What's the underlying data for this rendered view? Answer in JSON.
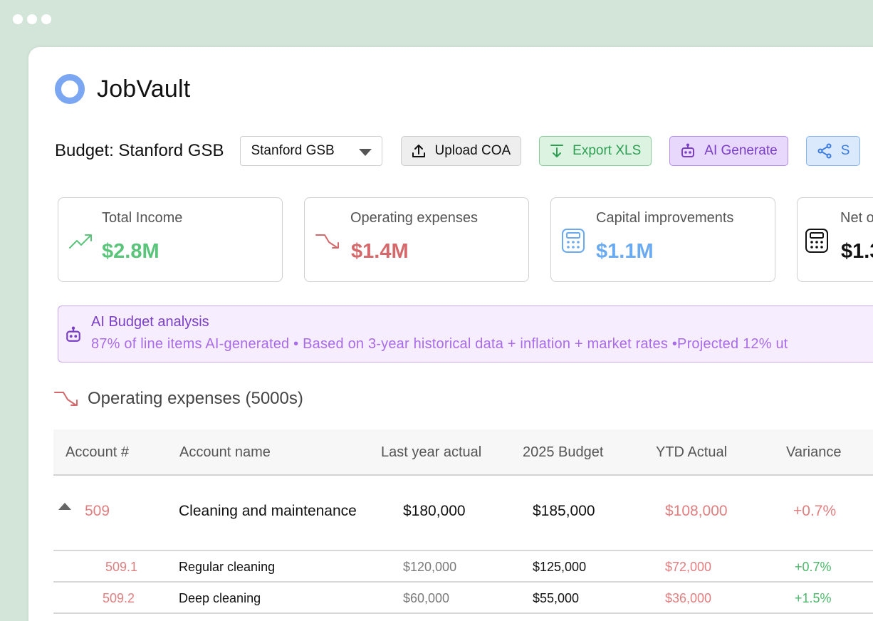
{
  "app": {
    "name": "JobVault"
  },
  "toolbar": {
    "budget_title": "Budget: Stanford GSB",
    "select_value": "Stanford GSB",
    "upload_label": "Upload COA",
    "export_label": "Export XLS",
    "ai_label": "AI Generate",
    "share_label": "S"
  },
  "cards": [
    {
      "label": "Total Income",
      "value": "$2.8M",
      "icon": "trend-up-icon",
      "color": "#5ac47a"
    },
    {
      "label": "Operating expenses",
      "value": "$1.4M",
      "icon": "trend-down-icon",
      "color": "#d4686a"
    },
    {
      "label": "Capital improvements",
      "value": "$1.1M",
      "icon": "calculator-icon",
      "color": "#6aaaf0"
    },
    {
      "label": "Net o",
      "value": "$1.3",
      "icon": "calculator-icon",
      "color": "#111111"
    }
  ],
  "ai_banner": {
    "title": "AI Budget analysis",
    "text": "87% of line items AI-generated • Based on 3-year historical data + inflation + market rates •Projected 12% ut"
  },
  "section": {
    "title": "Operating expenses (5000s)"
  },
  "table": {
    "headers": [
      "Account #",
      "Account name",
      "Last year actual",
      "2025 Budget",
      "YTD Actual",
      "Variance"
    ],
    "rows": [
      {
        "account": "509",
        "name": "Cleaning and maintenance",
        "last_year": "$180,000",
        "budget": "$185,000",
        "ytd": "$108,000",
        "variance": "+0.7%"
      },
      {
        "account": "509.1",
        "name": "Regular cleaning",
        "last_year": "$120,000",
        "budget": "$125,000",
        "ytd": "$72,000",
        "variance": "+0.7%"
      },
      {
        "account": "509.2",
        "name": "Deep cleaning",
        "last_year": "$60,000",
        "budget": "$55,000",
        "ytd": "$36,000",
        "variance": "+1.5%"
      }
    ]
  }
}
